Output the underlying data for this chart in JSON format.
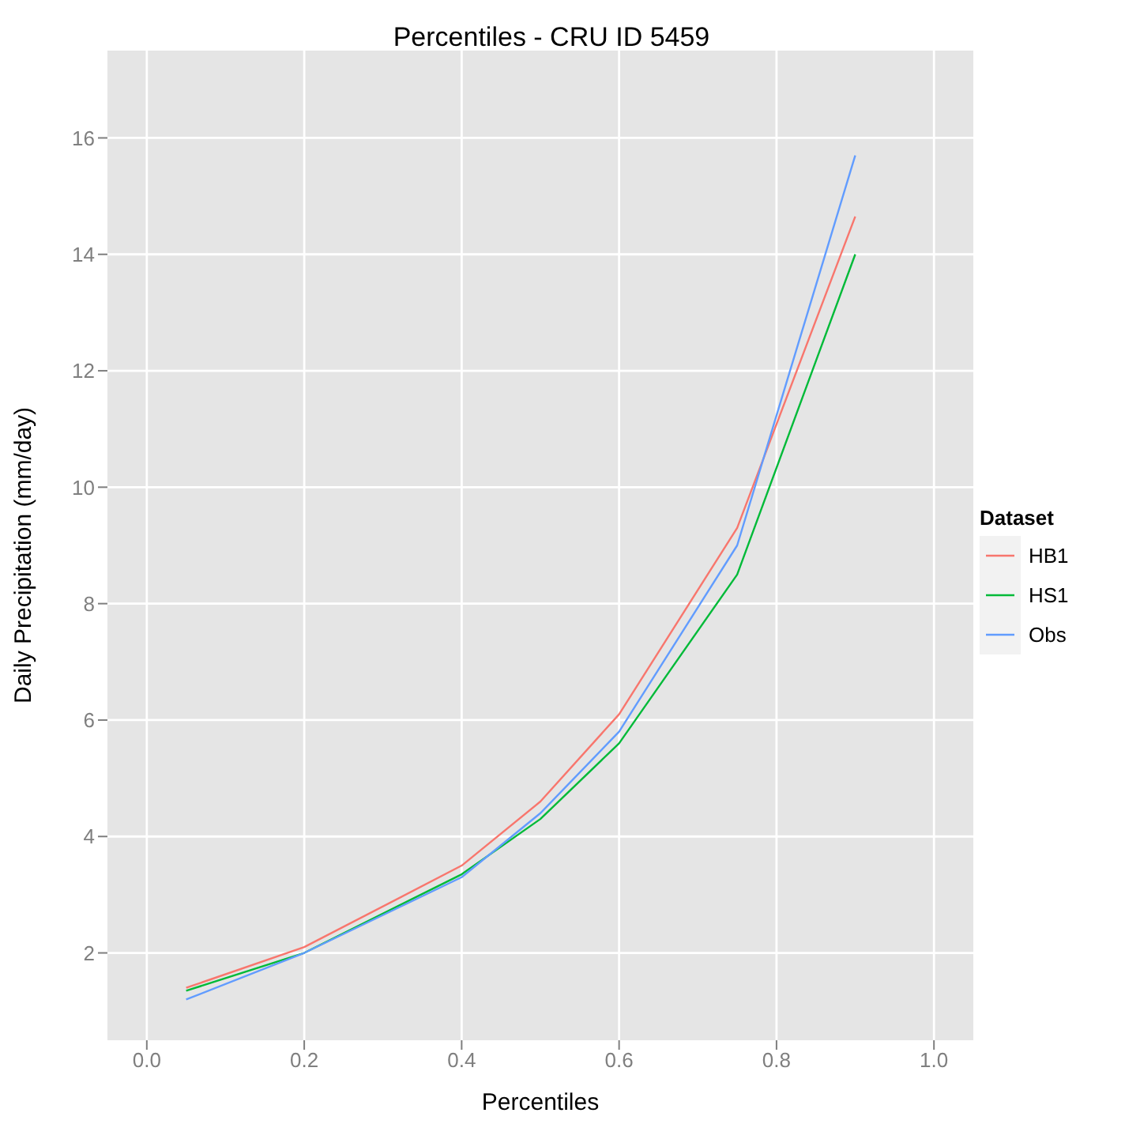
{
  "chart_data": {
    "type": "line",
    "title": "Percentiles - CRU ID 5459",
    "xlabel": "Percentiles",
    "ylabel": "Daily Precipitation (mm/day)",
    "legend_title": "Dataset",
    "x": [
      0.05,
      0.2,
      0.4,
      0.5,
      0.6,
      0.75,
      0.9
    ],
    "series": [
      {
        "name": "HB1",
        "color": "#f8766d",
        "values": [
          1.4,
          2.1,
          3.5,
          4.6,
          6.1,
          9.3,
          14.65
        ]
      },
      {
        "name": "HS1",
        "color": "#00ba38",
        "values": [
          1.35,
          2.0,
          3.35,
          4.3,
          5.6,
          8.5,
          14.0
        ]
      },
      {
        "name": "Obs",
        "color": "#619cff",
        "values": [
          1.2,
          2.0,
          3.3,
          4.4,
          5.8,
          9.0,
          15.7
        ]
      }
    ],
    "xlim": [
      -0.05,
      1.05
    ],
    "xticks": [
      {
        "value": 0,
        "label": "0.0"
      },
      0.2,
      0.4,
      0.6,
      0.8,
      {
        "value": 1,
        "label": "1.0"
      }
    ],
    "ylim": [
      0.5,
      17.5
    ],
    "yticks": [
      2,
      4,
      6,
      8,
      10,
      12,
      14,
      16
    ],
    "grid": true,
    "legend": "right",
    "marker": "none",
    "line_style": "solid"
  }
}
